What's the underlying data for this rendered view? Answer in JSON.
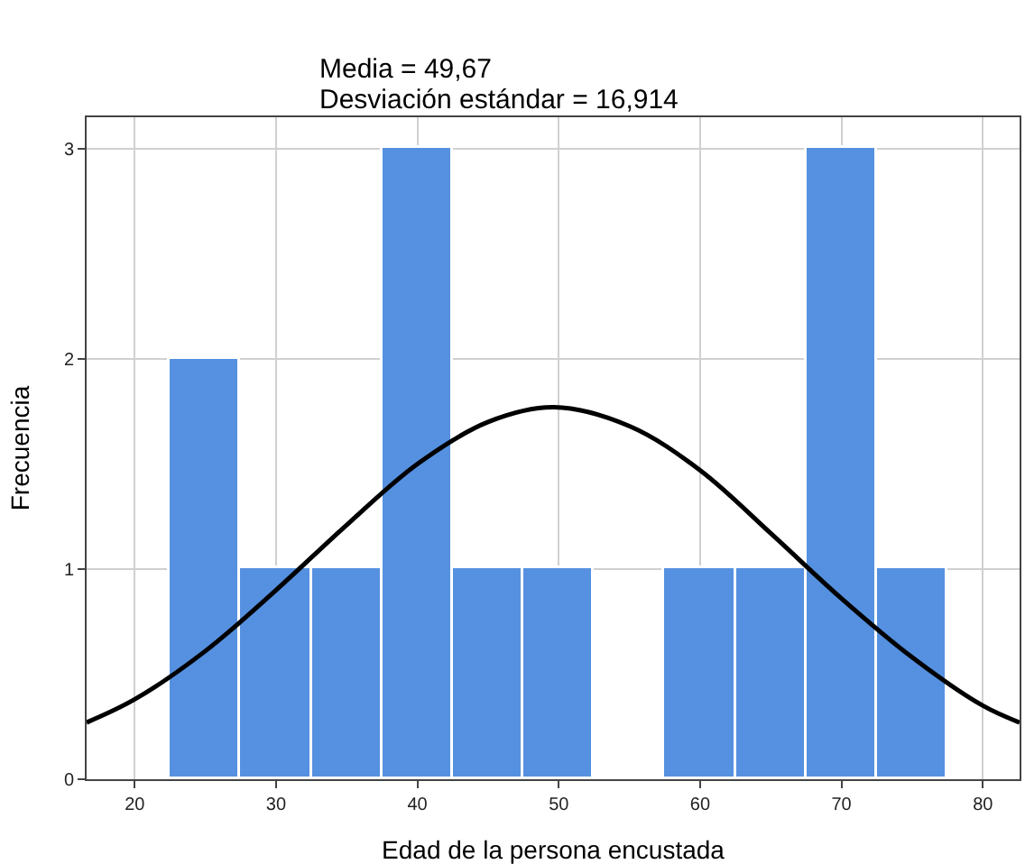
{
  "chart_data": {
    "type": "histogram",
    "xlabel": "Edad de la persona encustada",
    "ylabel": "Frecuencia",
    "annotations": [
      "Media = 49,67",
      "Desviación estándar = 16,914"
    ],
    "bins": [
      22.5,
      27.5,
      32.5,
      37.5,
      42.5,
      47.5,
      52.5,
      57.5,
      62.5,
      67.5,
      72.5,
      77.5
    ],
    "values": [
      2,
      1,
      1,
      3,
      1,
      1,
      0,
      1,
      1,
      3,
      1
    ],
    "color": "#5591e0",
    "series": [
      {
        "type": "line",
        "color": "#000000",
        "x": [
          16.6,
          20,
          25,
          30,
          35,
          40,
          45,
          49.67,
          55,
          60,
          65,
          70,
          75,
          80,
          82.6
        ],
        "values": [
          0.27,
          0.38,
          0.61,
          0.9,
          1.21,
          1.5,
          1.7,
          1.77,
          1.68,
          1.47,
          1.17,
          0.86,
          0.58,
          0.35,
          0.27
        ]
      }
    ],
    "xlim": [
      16.6,
      82.6
    ],
    "xticks": [
      20,
      30,
      40,
      50,
      60,
      70,
      80
    ],
    "ylim": [
      0,
      3.15
    ],
    "yticks": [
      0,
      1,
      2,
      3
    ],
    "grid": true
  }
}
